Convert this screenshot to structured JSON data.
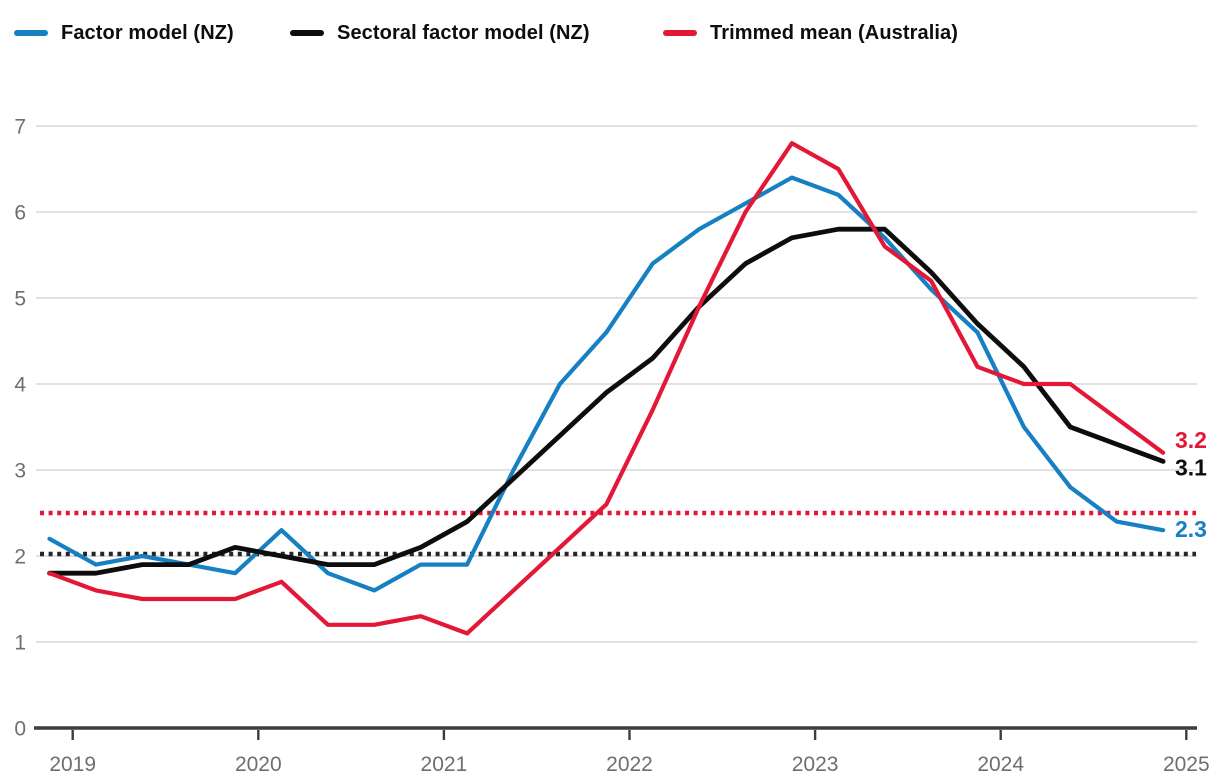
{
  "chart_data": {
    "type": "line",
    "title": "",
    "x_label": "",
    "y_label": "",
    "ylim": [
      0,
      7
    ],
    "y_ticks": [
      "0",
      "1",
      "2",
      "3",
      "4",
      "5",
      "6",
      "7"
    ],
    "x_tick_labels": [
      "2019",
      "2020",
      "2021",
      "2022",
      "2023",
      "2024",
      "2025"
    ],
    "grid": "horizontal",
    "legend_position": "top-left",
    "categories": [
      "2018 Q4",
      "2019 Q1",
      "2019 Q2",
      "2019 Q3",
      "2019 Q4",
      "2020 Q1",
      "2020 Q2",
      "2020 Q3",
      "2020 Q4",
      "2021 Q1",
      "2021 Q2",
      "2021 Q3",
      "2021 Q4",
      "2022 Q1",
      "2022 Q2",
      "2022 Q3",
      "2022 Q4",
      "2023 Q1",
      "2023 Q2",
      "2023 Q3",
      "2023 Q4",
      "2024 Q1",
      "2024 Q2",
      "2024 Q3",
      "2024 Q4"
    ],
    "series": [
      {
        "name": "Factor model (NZ)",
        "color": "#1780c2",
        "end_label": "2.3",
        "values": [
          2.2,
          1.9,
          2.0,
          1.9,
          1.8,
          2.3,
          1.8,
          1.6,
          1.9,
          1.9,
          3.0,
          4.0,
          4.6,
          5.4,
          5.8,
          6.1,
          6.4,
          6.2,
          5.7,
          5.1,
          4.6,
          3.5,
          2.8,
          2.4,
          2.3
        ]
      },
      {
        "name": "Sectoral factor model (NZ)",
        "color": "#0d0d0d",
        "end_label": "3.1",
        "values": [
          1.8,
          1.8,
          1.9,
          1.9,
          2.1,
          2.0,
          1.9,
          1.9,
          2.1,
          2.4,
          2.9,
          3.4,
          3.9,
          4.3,
          4.9,
          5.4,
          5.7,
          5.8,
          5.8,
          5.3,
          4.7,
          4.2,
          3.5,
          3.3,
          3.1
        ]
      },
      {
        "name": "Trimmed mean (Australia)",
        "color": "#e31837",
        "end_label": "3.2",
        "values": [
          1.8,
          1.6,
          1.5,
          1.5,
          1.5,
          1.7,
          1.2,
          1.2,
          1.3,
          1.1,
          1.6,
          2.1,
          2.6,
          3.7,
          4.9,
          6.0,
          6.8,
          6.5,
          5.6,
          5.2,
          4.2,
          4.0,
          4.0,
          3.6,
          3.2
        ]
      }
    ],
    "reference_lines": [
      {
        "value": 2.5,
        "color": "#e31837",
        "style": "dotted"
      },
      {
        "value": 2.0,
        "color": "#262626",
        "style": "dotted"
      }
    ]
  }
}
